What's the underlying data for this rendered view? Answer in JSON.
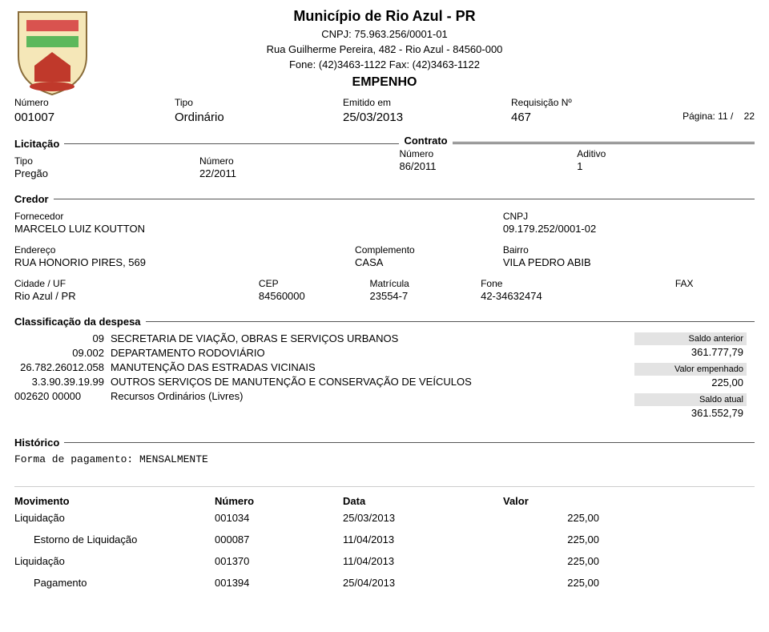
{
  "header": {
    "municipio": "Município de Rio Azul - PR",
    "cnpj": "CNPJ: 75.963.256/0001-01",
    "endereco": "Rua Guilherme Pereira, 482 - Rio Azul - 84560-000",
    "fone_fax": "Fone: (42)3463-1122    Fax: (42)3463-1122",
    "empenho": "EMPENHO",
    "pagina_label": "Página: 11 /",
    "pagina_total": "22"
  },
  "ident": {
    "numero_label": "Número",
    "numero": "001007",
    "tipo_label": "Tipo",
    "tipo": "Ordinário",
    "emitido_label": "Emitido em",
    "emitido": "25/03/2013",
    "req_label": "Requisição Nº",
    "req": "467"
  },
  "licitacao": {
    "legend": "Licitação",
    "tipo_label": "Tipo",
    "tipo": "Pregão",
    "numero_label": "Número",
    "numero": "22/2011",
    "contrato_legend": "Contrato",
    "contrato_numero_label": "Número",
    "contrato_numero": "86/2011",
    "aditivo_label": "Aditivo",
    "aditivo": "1"
  },
  "credor": {
    "legend": "Credor",
    "fornecedor_label": "Fornecedor",
    "fornecedor": "MARCELO LUIZ KOUTTON",
    "cnpj_label": "CNPJ",
    "cnpj": "09.179.252/0001-02",
    "endereco_label": "Endereço",
    "endereco": "RUA HONORIO PIRES, 569",
    "complemento_label": "Complemento",
    "complemento": "CASA",
    "bairro_label": "Bairro",
    "bairro": "VILA PEDRO ABIB",
    "cidade_label": "Cidade / UF",
    "cidade": "Rio Azul / PR",
    "cep_label": "CEP",
    "cep": "84560000",
    "matricula_label": "Matrícula",
    "matricula": "23554-7",
    "fone_label": "Fone",
    "fone": "42-34632474",
    "fax_label": "FAX"
  },
  "classif": {
    "legend": "Classificação da despesa",
    "lines": [
      {
        "code": "09",
        "desc": "SECRETARIA DE VIAÇÃO, OBRAS E SERVIÇOS URBANOS"
      },
      {
        "code": "09.002",
        "desc": "DEPARTAMENTO RODOVIÁRIO"
      },
      {
        "code": "26.782.26012.058",
        "desc": "MANUTENÇÃO DAS ESTRADAS VICINAIS"
      },
      {
        "code": "3.3.90.39.19.99",
        "desc": "OUTROS SERVIÇOS DE MANUTENÇÃO E CONSERVAÇÃO DE VEÍCULOS"
      },
      {
        "code": "002620       00000",
        "desc": "Recursos Ordinários (Livres)"
      }
    ],
    "saldo_anterior_label": "Saldo anterior",
    "saldo_anterior": "361.777,79",
    "valor_empenhado_label": "Valor empenhado",
    "valor_empenhado": "225,00",
    "saldo_atual_label": "Saldo atual",
    "saldo_atual": "361.552,79"
  },
  "historico": {
    "legend": "Histórico",
    "texto": "Forma de pagamento: MENSALMENTE"
  },
  "movimento": {
    "headers": {
      "mov": "Movimento",
      "num": "Número",
      "data": "Data",
      "valor": "Valor"
    },
    "rows": [
      {
        "mov": "Liquidação",
        "num": "001034",
        "data": "25/03/2013",
        "valor": "225,00",
        "indent": false
      },
      {
        "mov": "Estorno de Liquidação",
        "num": "000087",
        "data": "11/04/2013",
        "valor": "225,00",
        "indent": true
      },
      {
        "mov": "Liquidação",
        "num": "001370",
        "data": "11/04/2013",
        "valor": "225,00",
        "indent": false
      },
      {
        "mov": "Pagamento",
        "num": "001394",
        "data": "25/04/2013",
        "valor": "225,00",
        "indent": true
      }
    ]
  },
  "colors": {
    "amount_bg": "#e3e3e3",
    "text": "#000000",
    "bg": "#ffffff"
  }
}
